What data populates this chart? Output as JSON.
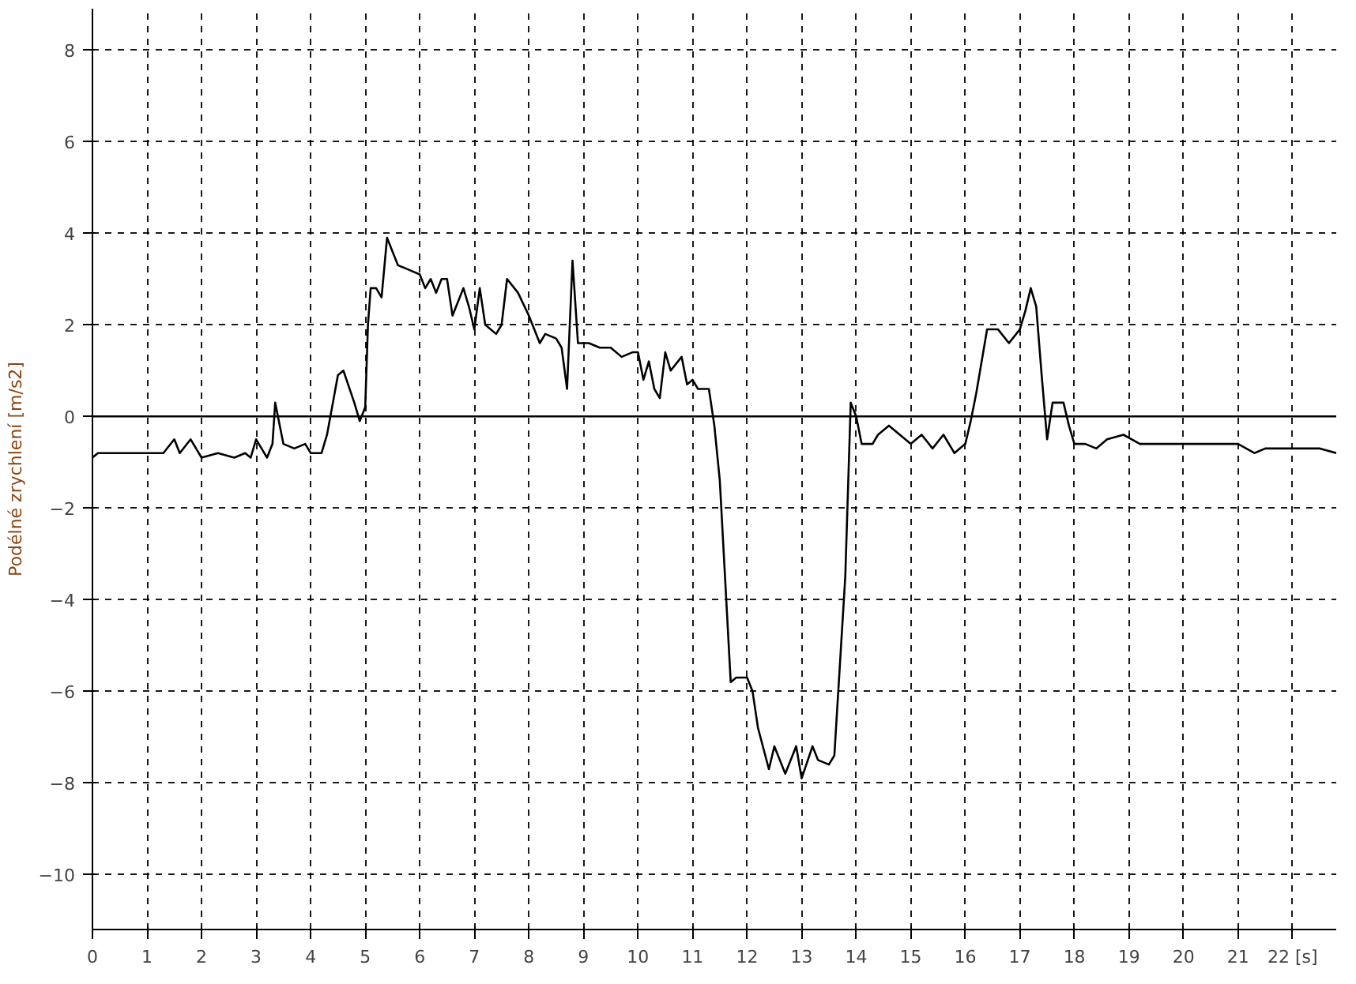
{
  "chart_data": {
    "type": "line",
    "ylabel": "Podélné zrychlení [m/s2]",
    "x": [
      0,
      0.1,
      1.0,
      1.3,
      1.5,
      1.6,
      1.8,
      2.0,
      2.3,
      2.6,
      2.8,
      2.9,
      3.0,
      3.1,
      3.2,
      3.3,
      3.35,
      3.5,
      3.7,
      3.9,
      4.0,
      4.2,
      4.3,
      4.5,
      4.6,
      4.8,
      4.9,
      5.0,
      5.05,
      5.1,
      5.2,
      5.3,
      5.4,
      5.5,
      5.6,
      5.8,
      6.0,
      6.1,
      6.2,
      6.3,
      6.4,
      6.5,
      6.6,
      6.8,
      6.9,
      7.0,
      7.1,
      7.2,
      7.4,
      7.5,
      7.6,
      7.8,
      8.0,
      8.2,
      8.3,
      8.5,
      8.6,
      8.7,
      8.8,
      8.9,
      9.1,
      9.3,
      9.5,
      9.7,
      9.9,
      10.0,
      10.1,
      10.2,
      10.3,
      10.4,
      10.5,
      10.6,
      10.8,
      10.9,
      11.0,
      11.1,
      11.3,
      11.4,
      11.5,
      11.7,
      11.8,
      12.0,
      12.1,
      12.2,
      12.4,
      12.5,
      12.7,
      12.9,
      13.0,
      13.2,
      13.3,
      13.5,
      13.6,
      13.8,
      13.9,
      14.0,
      14.1,
      14.3,
      14.4,
      14.6,
      14.8,
      15.0,
      15.2,
      15.4,
      15.6,
      15.8,
      16.0,
      16.1,
      16.2,
      16.4,
      16.6,
      16.8,
      17.0,
      17.1,
      17.2,
      17.3,
      17.4,
      17.5,
      17.6,
      17.8,
      17.9,
      18.0,
      18.2,
      18.4,
      18.6,
      18.9,
      19.2,
      19.5,
      20.0,
      20.5,
      21.0,
      21.3,
      21.5,
      22.0,
      22.5,
      22.8
    ],
    "series": [
      {
        "color": "#000000",
        "values": [
          -0.9,
          -0.8,
          -0.8,
          -0.8,
          -0.5,
          -0.8,
          -0.5,
          -0.9,
          -0.8,
          -0.9,
          -0.8,
          -0.9,
          -0.5,
          -0.7,
          -0.9,
          -0.6,
          0.3,
          -0.6,
          -0.7,
          -0.6,
          -0.8,
          -0.8,
          -0.4,
          0.9,
          1.0,
          0.3,
          -0.1,
          0.2,
          2.0,
          2.8,
          2.8,
          2.6,
          3.9,
          3.6,
          3.3,
          3.2,
          3.1,
          2.8,
          3.0,
          2.7,
          3.0,
          3.0,
          2.2,
          2.8,
          2.4,
          1.9,
          2.8,
          2.0,
          1.8,
          2.0,
          3.0,
          2.7,
          2.2,
          1.6,
          1.8,
          1.7,
          1.5,
          0.6,
          3.4,
          1.6,
          1.6,
          1.5,
          1.5,
          1.3,
          1.4,
          1.4,
          0.8,
          1.2,
          0.6,
          0.4,
          1.4,
          1.0,
          1.3,
          0.7,
          0.8,
          0.6,
          0.6,
          -0.2,
          -1.4,
          -5.8,
          -5.7,
          -5.7,
          -6.0,
          -6.8,
          -7.7,
          -7.2,
          -7.8,
          -7.2,
          -7.9,
          -7.2,
          -7.5,
          -7.6,
          -7.4,
          -3.5,
          0.3,
          0.0,
          -0.6,
          -0.6,
          -0.4,
          -0.2,
          -0.4,
          -0.6,
          -0.4,
          -0.7,
          -0.4,
          -0.8,
          -0.6,
          -0.1,
          0.5,
          1.9,
          1.9,
          1.6,
          1.9,
          2.3,
          2.8,
          2.4,
          0.9,
          -0.5,
          0.3,
          0.3,
          -0.2,
          -0.6,
          -0.6,
          -0.7,
          -0.5,
          -0.4,
          -0.6,
          -0.6,
          -0.6,
          -0.6,
          -0.6,
          -0.8,
          -0.7,
          -0.7,
          -0.7,
          -0.8
        ]
      }
    ],
    "xlim": [
      0,
      22.8
    ],
    "ylim": [
      -11.2,
      8.9
    ],
    "xticks": [
      0,
      1,
      2,
      3,
      4,
      5,
      6,
      7,
      8,
      9,
      10,
      11,
      12,
      13,
      14,
      15,
      16,
      17,
      18,
      19,
      20,
      21,
      {
        "value": 22,
        "label": "22 [s]"
      }
    ],
    "yticks": [
      -10,
      -8,
      -6,
      -4,
      -2,
      0,
      2,
      4,
      6,
      8
    ],
    "grid": true,
    "marker": "none",
    "line_style": "solid",
    "ref_lines": [
      {
        "axis": "y",
        "value": 0,
        "color": "#000000",
        "line_style": "solid"
      }
    ]
  }
}
